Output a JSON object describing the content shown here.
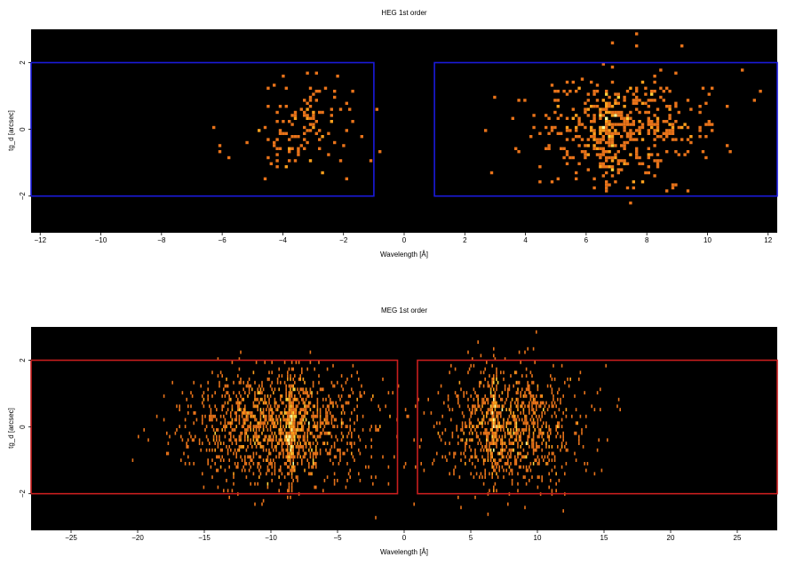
{
  "chart_data": [
    {
      "type": "heatmap",
      "title": "HEG 1st order",
      "xlabel": "Wavelength [Å]",
      "ylabel": "tg_d [arcsec]",
      "xlim": [
        -12.3,
        12.3
      ],
      "ylim": [
        -3.1,
        3.0
      ],
      "xticks": [
        "−12",
        "−10",
        "−8",
        "−6",
        "−4",
        "−2",
        "0",
        "2",
        "4",
        "6",
        "8",
        "10",
        "12"
      ],
      "yticks": [
        "−2",
        "0",
        "2"
      ],
      "xticks_values": [
        -12,
        -10,
        -8,
        -6,
        -4,
        -2,
        0,
        2,
        4,
        6,
        8,
        10,
        12
      ],
      "yticks_values": [
        -2,
        0,
        2
      ],
      "colormap": "hot",
      "background": "#000000",
      "regions": [
        {
          "x": [
            -12.3,
            -1.0
          ],
          "y": [
            -2.0,
            2.0
          ],
          "color": "#1a1adc"
        },
        {
          "x": [
            1.0,
            12.3
          ],
          "y": [
            -2.0,
            2.0
          ],
          "color": "#1a1adc"
        }
      ],
      "clusters": [
        {
          "x_center": -3.5,
          "x_sigma": 1.1,
          "y_center": 0.1,
          "y_sigma": 0.75,
          "count": 130,
          "peak_x": -3.2
        },
        {
          "x_center": 7.2,
          "x_sigma": 1.5,
          "y_center": 0.05,
          "y_sigma": 0.8,
          "count": 520,
          "peak_x": 6.7
        }
      ]
    },
    {
      "type": "heatmap",
      "title": "MEG 1st order",
      "xlabel": "Wavelength [Å]",
      "ylabel": "tg_d [arcsec]",
      "xlim": [
        -28,
        28
      ],
      "ylim": [
        -3.1,
        3.0
      ],
      "xticks": [
        "−25",
        "−20",
        "−15",
        "−10",
        "−5",
        "0",
        "5",
        "10",
        "15",
        "20",
        "25"
      ],
      "yticks": [
        "−2",
        "0",
        "2"
      ],
      "xticks_values": [
        -25,
        -20,
        -15,
        -10,
        -5,
        0,
        5,
        10,
        15,
        20,
        25
      ],
      "yticks_values": [
        -2,
        0,
        2
      ],
      "colormap": "hot",
      "background": "#000000",
      "regions": [
        {
          "x": [
            -28,
            -0.5
          ],
          "y": [
            -2.0,
            2.0
          ],
          "color": "#c81e1e"
        },
        {
          "x": [
            1.0,
            28
          ],
          "y": [
            -2.0,
            2.0
          ],
          "color": "#c81e1e"
        }
      ],
      "clusters": [
        {
          "x_center": -9.5,
          "x_sigma": 3.4,
          "y_center": 0.0,
          "y_sigma": 0.85,
          "count": 1500,
          "peak_x": -8.5
        },
        {
          "x_center": 8.0,
          "x_sigma": 2.6,
          "y_center": 0.0,
          "y_sigma": 0.85,
          "count": 1050,
          "peak_x": 6.7
        }
      ]
    }
  ]
}
